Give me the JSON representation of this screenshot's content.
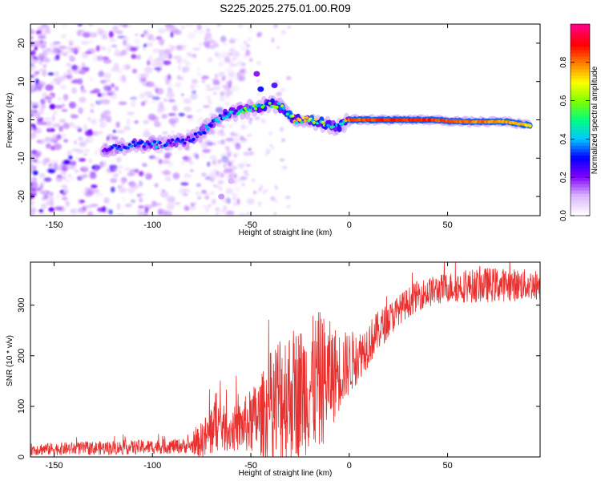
{
  "chart_data": [
    {
      "type": "heatmap",
      "title": "S225.2025.275.01.00.R09",
      "xlabel": "Height of straight line (km)",
      "ylabel": "Frequency (Hz)",
      "xlim": [
        -162,
        97
      ],
      "ylim": [
        -25,
        25
      ],
      "xticks": [
        -150,
        -100,
        -50,
        0,
        50
      ],
      "yticks": [
        -20,
        -10,
        0,
        10,
        20
      ],
      "colorbar": {
        "label": "Normalized spectral amplitude",
        "range": [
          0,
          1
        ],
        "ticks": [
          "0.0",
          "0.2",
          "0.4",
          "0.6",
          "0.8"
        ],
        "tick_values": [
          0.0,
          0.2,
          0.4,
          0.6,
          0.8
        ],
        "colormap": [
          "#ffffff",
          "#d9b3ff",
          "#8000ff",
          "#0000ff",
          "#00c8ff",
          "#00ff80",
          "#80ff00",
          "#ffff00",
          "#ff8000",
          "#ff0000",
          "#ff0080"
        ]
      },
      "ridge": [
        {
          "x": -125,
          "y": -8,
          "amp": 0.25
        },
        {
          "x": -110,
          "y": -6.5,
          "amp": 0.3
        },
        {
          "x": -100,
          "y": -6.5,
          "amp": 0.35
        },
        {
          "x": -90,
          "y": -6,
          "amp": 0.3
        },
        {
          "x": -80,
          "y": -5,
          "amp": 0.3
        },
        {
          "x": -72,
          "y": -2,
          "amp": 0.35
        },
        {
          "x": -65,
          "y": 1,
          "amp": 0.35
        },
        {
          "x": -57,
          "y": 2,
          "amp": 0.45
        },
        {
          "x": -50,
          "y": 3,
          "amp": 0.45
        },
        {
          "x": -42,
          "y": 4,
          "amp": 0.5
        },
        {
          "x": -35,
          "y": 3.5,
          "amp": 0.55
        },
        {
          "x": -28,
          "y": 0,
          "amp": 0.6
        },
        {
          "x": -20,
          "y": 0,
          "amp": 0.6
        },
        {
          "x": -12,
          "y": -1,
          "amp": 0.55
        },
        {
          "x": -7,
          "y": -2,
          "amp": 0.4
        },
        {
          "x": 0,
          "y": 0,
          "amp": 0.85
        },
        {
          "x": 20,
          "y": 0,
          "amp": 0.9
        },
        {
          "x": 40,
          "y": 0,
          "amp": 0.9
        },
        {
          "x": 60,
          "y": -0.5,
          "amp": 0.85
        },
        {
          "x": 80,
          "y": -0.5,
          "amp": 0.8
        },
        {
          "x": 92,
          "y": -1.5,
          "amp": 0.75
        }
      ],
      "noise_region": {
        "x_from": -162,
        "x_to": -75
      }
    },
    {
      "type": "line",
      "xlabel": "Height of straight line (km)",
      "ylabel": "SNR (10 * v/v)",
      "xlim": [
        -162,
        97
      ],
      "ylim": [
        0,
        385
      ],
      "xticks": [
        -150,
        -100,
        -50,
        0,
        50
      ],
      "yticks": [
        0,
        100,
        200,
        300
      ],
      "series": [
        {
          "name": "SNR",
          "color": "#e8302f",
          "envelope": [
            {
              "x": -162,
              "base": 15,
              "spread": 12
            },
            {
              "x": -120,
              "base": 18,
              "spread": 14
            },
            {
              "x": -80,
              "base": 22,
              "spread": 15
            },
            {
              "x": -72,
              "base": 40,
              "spread": 50
            },
            {
              "x": -68,
              "base": 70,
              "spread": 60
            },
            {
              "x": -62,
              "base": 50,
              "spread": 40
            },
            {
              "x": -55,
              "base": 60,
              "spread": 50
            },
            {
              "x": -45,
              "base": 80,
              "spread": 80
            },
            {
              "x": -35,
              "base": 120,
              "spread": 140
            },
            {
              "x": -25,
              "base": 130,
              "spread": 130
            },
            {
              "x": -15,
              "base": 150,
              "spread": 140
            },
            {
              "x": -5,
              "base": 170,
              "spread": 80
            },
            {
              "x": 5,
              "base": 200,
              "spread": 50
            },
            {
              "x": 15,
              "base": 250,
              "spread": 40
            },
            {
              "x": 25,
              "base": 290,
              "spread": 30
            },
            {
              "x": 35,
              "base": 320,
              "spread": 30
            },
            {
              "x": 50,
              "base": 335,
              "spread": 30
            },
            {
              "x": 70,
              "base": 340,
              "spread": 35
            },
            {
              "x": 97,
              "base": 340,
              "spread": 30
            }
          ]
        }
      ]
    }
  ]
}
